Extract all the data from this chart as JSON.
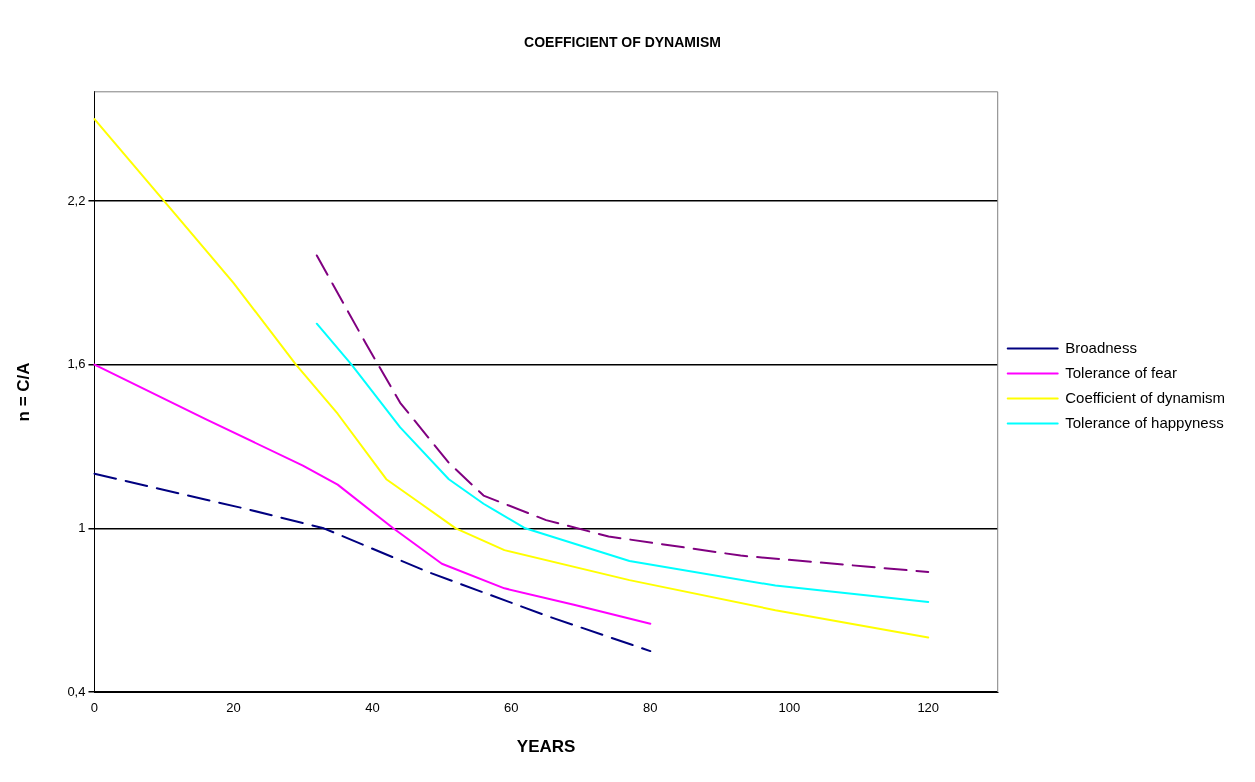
{
  "chart_data": {
    "type": "line",
    "title": "COEFFICIENT OF DYNAMISM",
    "xlabel": "YEARS",
    "ylabel": "n = C/A",
    "xlim": [
      0,
      130
    ],
    "xticks": [
      0,
      20,
      40,
      60,
      80,
      100,
      120
    ],
    "ylim": [
      0.4,
      2.6
    ],
    "yticks": [
      {
        "value": 0.4,
        "label": "0,4"
      },
      {
        "value": 1,
        "label": "1"
      },
      {
        "value": 1.6,
        "label": "1,6"
      },
      {
        "value": 2.2,
        "label": "2,2"
      }
    ],
    "grid": "y",
    "legend": "right",
    "marker": "none",
    "series": [
      {
        "name": "Broadness",
        "color": "#000080",
        "line_style": "dashed",
        "x": [
          0,
          22,
          33,
          48,
          65,
          80
        ],
        "values": [
          1.2,
          1.07,
          1.0,
          0.84,
          0.68,
          0.55
        ]
      },
      {
        "name": "Tolerance of fear",
        "color": "#ff00ff",
        "line_style": "solid",
        "x": [
          0,
          16,
          30,
          35,
          43,
          50,
          59,
          69,
          80
        ],
        "values": [
          1.6,
          1.4,
          1.23,
          1.16,
          1.0,
          0.87,
          0.78,
          0.72,
          0.65
        ]
      },
      {
        "name": "Coefficient of dynamism",
        "color": "#ffff00",
        "line_style": "solid",
        "x": [
          0,
          10,
          20,
          29,
          35,
          42,
          47,
          52,
          59,
          77,
          98,
          120
        ],
        "values": [
          2.5,
          2.2,
          1.9,
          1.6,
          1.42,
          1.18,
          1.09,
          1.0,
          0.92,
          0.81,
          0.7,
          0.6
        ]
      },
      {
        "name": "Tolerance of happyness",
        "color": "#00ffff",
        "line_style": "solid",
        "x": [
          32,
          37,
          44,
          51,
          56,
          62,
          77,
          98,
          120
        ],
        "values": [
          1.75,
          1.6,
          1.37,
          1.18,
          1.09,
          1.0,
          0.88,
          0.79,
          0.73
        ]
      },
      {
        "color": "#800080",
        "line_style": "dashed",
        "x": [
          32,
          39,
          44,
          51,
          56,
          65,
          74,
          93,
          111,
          120
        ],
        "values": [
          2.0,
          1.68,
          1.46,
          1.24,
          1.12,
          1.03,
          0.97,
          0.9,
          0.86,
          0.84
        ]
      }
    ]
  }
}
